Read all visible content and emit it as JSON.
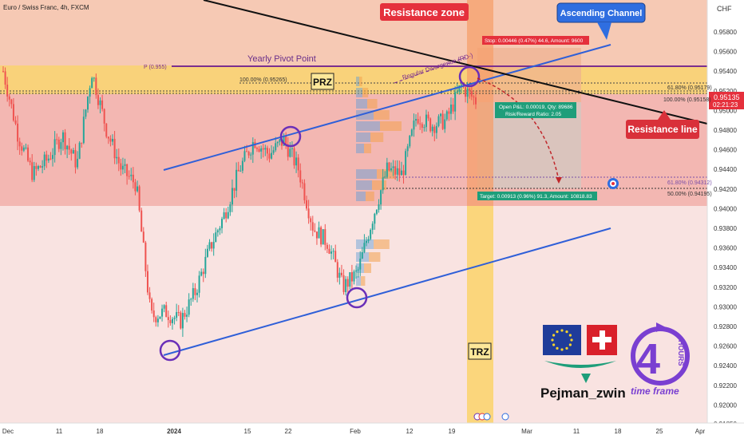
{
  "header": {
    "symbol_title": "Euro / Swiss Franc, 4h, FXCM"
  },
  "currency_label": "CHF",
  "price_axis": {
    "ticks": [
      "0.95800",
      "0.95600",
      "0.95400",
      "0.95200",
      "0.95000",
      "0.94800",
      "0.94600",
      "0.94400",
      "0.94200",
      "0.94000",
      "0.93800",
      "0.93600",
      "0.93400",
      "0.93200",
      "0.93000",
      "0.92800",
      "0.92600",
      "0.92400",
      "0.92200",
      "0.92000",
      "0.91850"
    ],
    "current_price": "0.95135",
    "countdown": "02:21:23"
  },
  "time_axis": {
    "ticks": [
      "Dec",
      "11",
      "18",
      "2024",
      "15",
      "22",
      "Feb",
      "12",
      "19",
      "Mar",
      "11",
      "18",
      "25",
      "Apr"
    ]
  },
  "annotations": {
    "resistance_zone": "Resistance zone",
    "ascending_channel": "Ascending Channel",
    "yearly_pivot_point": "Yearly Pivot Point",
    "prz": "PRZ",
    "trz": "TRZ",
    "resistance_line": "Resistance line",
    "regular_divergence": "Regular Divergence (RD-)",
    "pivot_label": "P (0.955)",
    "fib_100_left": "100.00% (0.95265)",
    "fib_618_top": "61.80% (0.95179)",
    "fib_100_right": "100.00% (0.95158)",
    "fib_618_bottom": "61.80% (0.94312)",
    "fib_50": "50.00% (0.94195)",
    "stop_label": "Stop: 0.00446 (0.47%) 44.6, Amount: 9600",
    "open_pl_line1": "Open P&L: 0.00019, Qty: 89686",
    "open_pl_line2": "Risk/Reward Ratio: 2.05",
    "target_label": "Target: 0.00913 (0.96%) 91.3, Amount: 10818.83"
  },
  "logo": {
    "author": "Pejman_zwin",
    "timeframe_text": "time frame",
    "hours_number": "4",
    "hours_word": "HOURS"
  },
  "colors": {
    "upper_zone": "#f6c9b4",
    "resistance_band": "#f9d27a",
    "lower_zone": "#fbe6e6",
    "channel": "#2f5fd8",
    "resistance_line": "#111111",
    "pivot": "#7b2f8f",
    "candle_up": "#26a69a",
    "candle_down": "#ef5350",
    "label_red": "#e5303c",
    "label_blue": "#2f6ee0",
    "target_green": "#1e9e7a"
  },
  "chart_data": {
    "type": "candlestick",
    "title": "Euro / Swiss Franc, 4h, FXCM",
    "ylim": [
      0.9185,
      0.9595
    ],
    "x": [
      "Dec 4",
      "Dec 6",
      "Dec 8",
      "Dec 11",
      "Dec 13",
      "Dec 15",
      "Dec 18",
      "Dec 20",
      "Dec 22",
      "Dec 27",
      "Dec 29",
      "Jan 2",
      "Jan 4",
      "Jan 8",
      "Jan 10",
      "Jan 12",
      "Jan 15",
      "Jan 17",
      "Jan 19",
      "Jan 22",
      "Jan 24",
      "Jan 26",
      "Jan 29",
      "Jan 31",
      "Feb 2",
      "Feb 5",
      "Feb 7",
      "Feb 9",
      "Feb 12",
      "Feb 14",
      "Feb 16",
      "Feb 19",
      "Feb 21"
    ],
    "close": [
      0.954,
      0.9475,
      0.9435,
      0.945,
      0.9475,
      0.9445,
      0.954,
      0.948,
      0.944,
      0.9425,
      0.929,
      0.9295,
      0.9285,
      0.9315,
      0.936,
      0.9395,
      0.944,
      0.947,
      0.9455,
      0.947,
      0.944,
      0.938,
      0.9365,
      0.932,
      0.9335,
      0.939,
      0.944,
      0.9435,
      0.9495,
      0.9485,
      0.949,
      0.9525,
      0.951
    ],
    "key_levels": [
      {
        "name": "P (0.955)",
        "value": 0.955
      },
      {
        "name": "100.00%",
        "value": 0.95265
      },
      {
        "name": "61.80%",
        "value": 0.95179
      },
      {
        "name": "100.00%",
        "value": 0.95158
      },
      {
        "name": "61.80%",
        "value": 0.94312
      },
      {
        "name": "50.00%",
        "value": 0.94195
      }
    ],
    "grid": false
  }
}
